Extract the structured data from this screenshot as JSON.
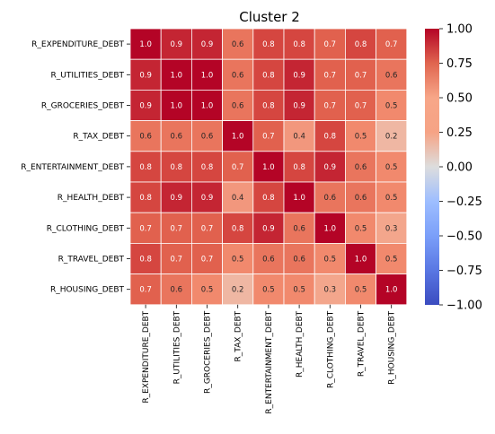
{
  "chart_data": {
    "type": "heatmap",
    "title": "Cluster 2",
    "rows": [
      "R_EXPENDITURE_DEBT",
      "R_UTILITIES_DEBT",
      "R_GROCERIES_DEBT",
      "R_TAX_DEBT",
      "R_ENTERTAINMENT_DEBT",
      "R_HEALTH_DEBT",
      "R_CLOTHING_DEBT",
      "R_TRAVEL_DEBT",
      "R_HOUSING_DEBT"
    ],
    "columns": [
      "R_EXPENDITURE_DEBT",
      "R_UTILITIES_DEBT",
      "R_GROCERIES_DEBT",
      "R_TAX_DEBT",
      "R_ENTERTAINMENT_DEBT",
      "R_HEALTH_DEBT",
      "R_CLOTHING_DEBT",
      "R_TRAVEL_DEBT",
      "R_HOUSING_DEBT"
    ],
    "values": [
      [
        1.0,
        0.9,
        0.9,
        0.6,
        0.8,
        0.8,
        0.7,
        0.8,
        0.7
      ],
      [
        0.9,
        1.0,
        1.0,
        0.6,
        0.8,
        0.9,
        0.7,
        0.7,
        0.6
      ],
      [
        0.9,
        1.0,
        1.0,
        0.6,
        0.8,
        0.9,
        0.7,
        0.7,
        0.5
      ],
      [
        0.6,
        0.6,
        0.6,
        1.0,
        0.7,
        0.4,
        0.8,
        0.5,
        0.2
      ],
      [
        0.8,
        0.8,
        0.8,
        0.7,
        1.0,
        0.8,
        0.9,
        0.6,
        0.5
      ],
      [
        0.8,
        0.9,
        0.9,
        0.4,
        0.8,
        1.0,
        0.6,
        0.6,
        0.5
      ],
      [
        0.7,
        0.7,
        0.7,
        0.8,
        0.9,
        0.6,
        1.0,
        0.5,
        0.3
      ],
      [
        0.8,
        0.7,
        0.7,
        0.5,
        0.6,
        0.6,
        0.5,
        1.0,
        0.5
      ],
      [
        0.7,
        0.6,
        0.5,
        0.2,
        0.5,
        0.5,
        0.3,
        0.5,
        1.0
      ]
    ],
    "colorbar": {
      "colormap": "coolwarm",
      "range": [
        -1.0,
        1.0
      ],
      "ticks": [
        "1.00",
        "0.75",
        "0.50",
        "0.25",
        "0.00",
        "−0.25",
        "−0.50",
        "−0.75",
        "−1.00"
      ],
      "tick_values": [
        1.0,
        0.75,
        0.5,
        0.25,
        0.0,
        -0.25,
        -0.5,
        -0.75,
        -1.0
      ]
    },
    "annotations": true,
    "grid": false
  }
}
